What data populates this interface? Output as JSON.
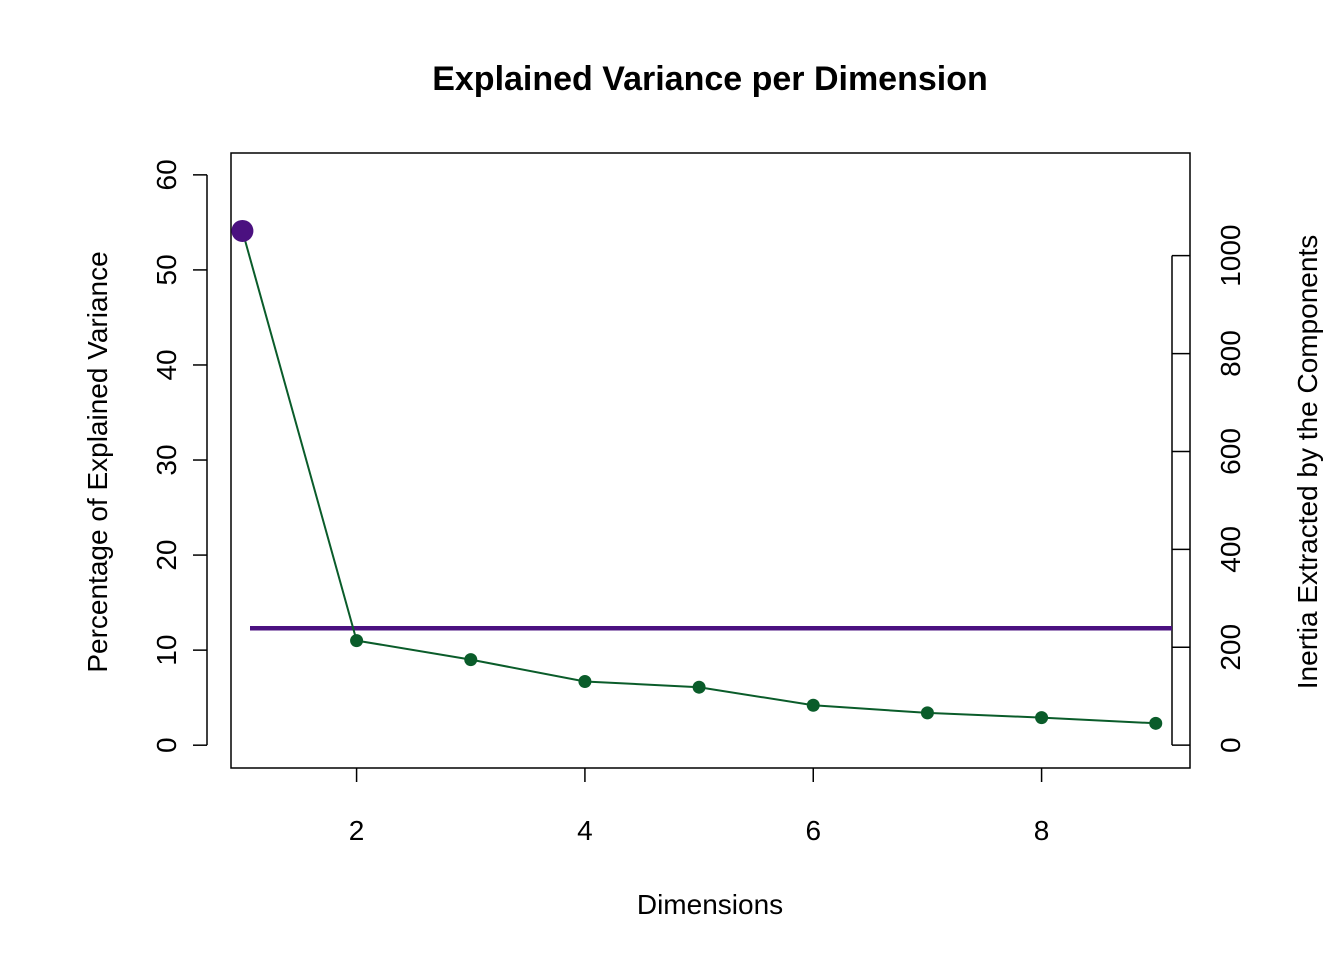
{
  "chart_data": {
    "type": "line",
    "title": "Explained Variance per Dimension",
    "xlabel": "Dimensions",
    "ylabel": "Percentage of Explained Variance",
    "y2label": "Inertia Extracted by the Components",
    "x": [
      1,
      2,
      3,
      4,
      5,
      6,
      7,
      8,
      9
    ],
    "series": [
      {
        "values": [
          54.1,
          11.0,
          9.0,
          6.7,
          6.1,
          4.2,
          3.4,
          2.9,
          2.3
        ],
        "color": "#0a5c2a",
        "highlight_color": "#4b1180"
      }
    ],
    "reference_line": {
      "y": 12.3,
      "color": "#4b1180"
    },
    "xlim": [
      0.9,
      9.3
    ],
    "ylim": [
      -2.4,
      62.3
    ],
    "xticks": [
      2,
      4,
      6,
      8
    ],
    "yticks": [
      0,
      10,
      20,
      30,
      40,
      50,
      60
    ],
    "y2range": [
      0,
      1000
    ],
    "y2ticks": [
      0,
      200,
      400,
      600,
      800,
      1000
    ],
    "y2_axis_span": [
      0,
      51.5
    ],
    "grid": false
  }
}
